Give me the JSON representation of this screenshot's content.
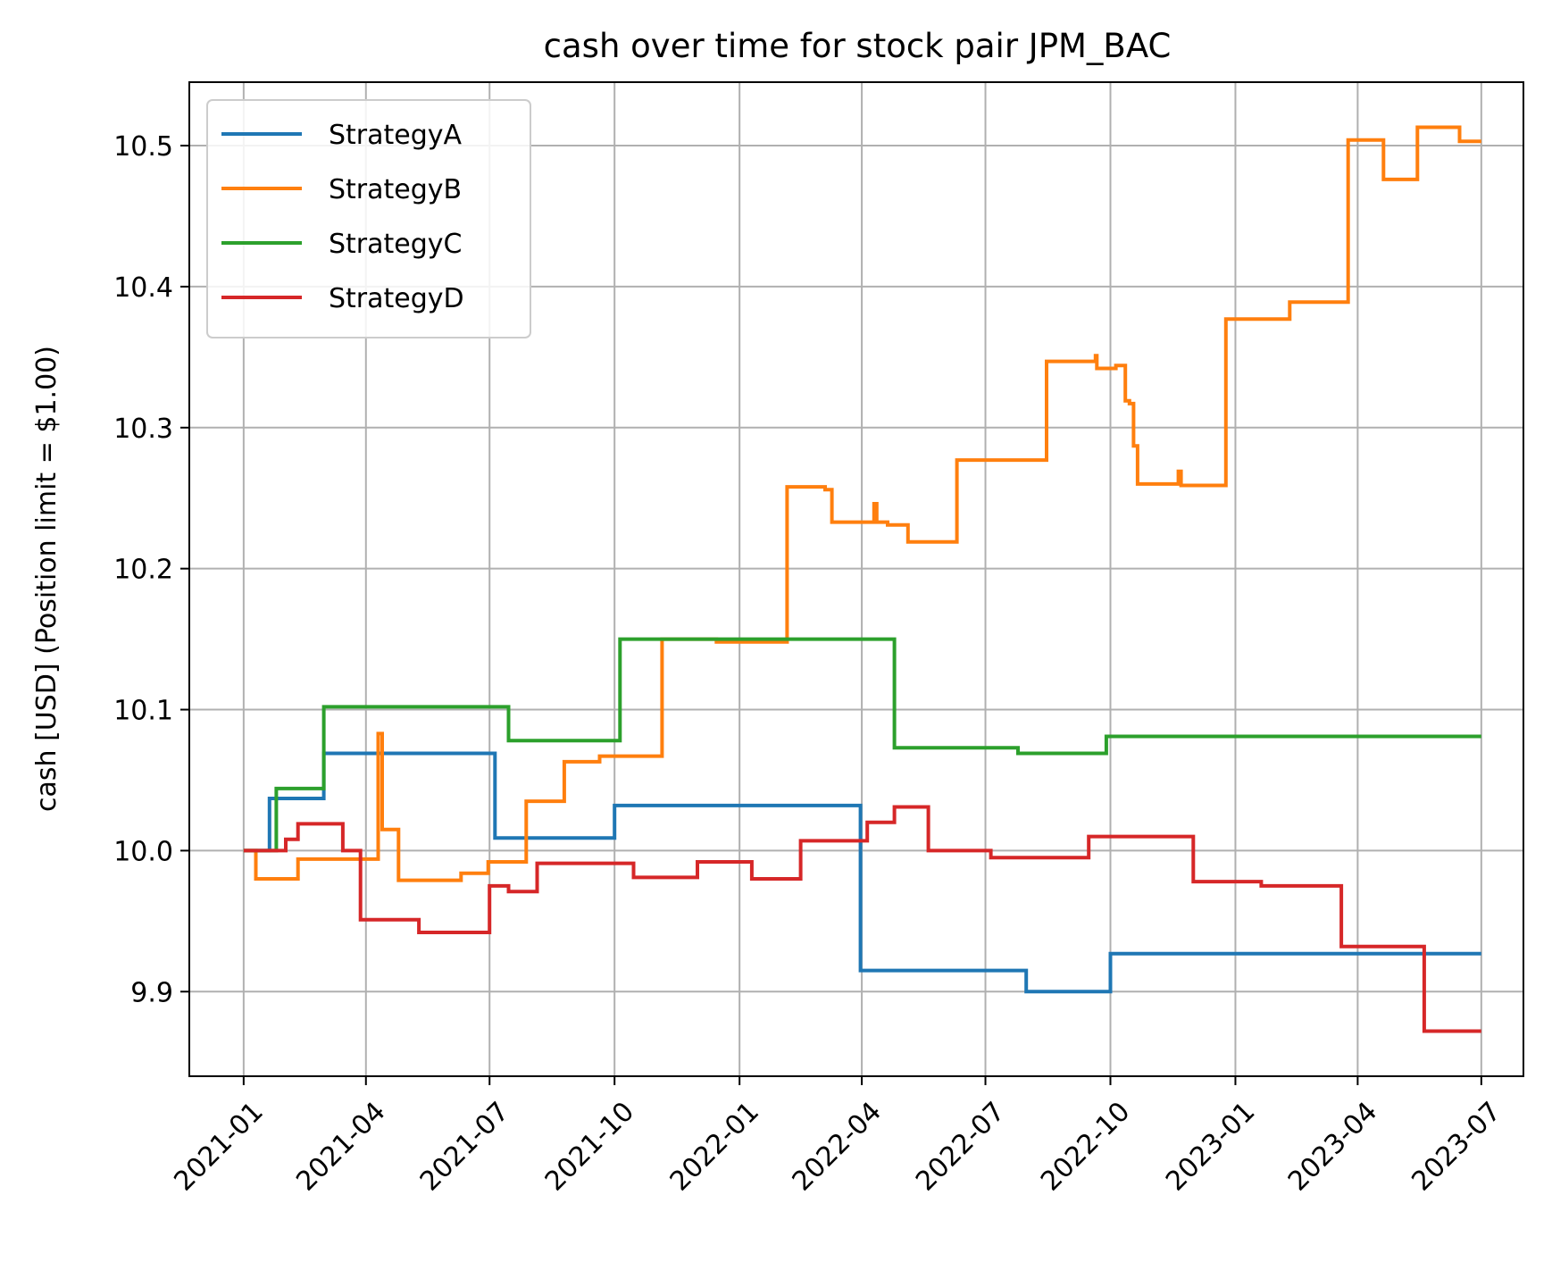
{
  "chart_data": {
    "type": "line",
    "title": "cash over time for stock pair JPM_BAC",
    "xlabel": "",
    "ylabel": "cash [USD] (Position limit = $1.00)",
    "x_ticks": [
      "2021-01",
      "2021-04",
      "2021-07",
      "2021-10",
      "2022-01",
      "2022-04",
      "2022-07",
      "2022-10",
      "2023-01",
      "2023-04",
      "2023-07"
    ],
    "y_ticks": [
      "9.9",
      "10.0",
      "10.1",
      "10.2",
      "10.3",
      "10.4",
      "10.5"
    ],
    "xlim": [
      "2020-11-22",
      "2023-08-01"
    ],
    "ylim": [
      9.84,
      10.545
    ],
    "grid": true,
    "legend_position": "upper-left",
    "step": true,
    "series": [
      {
        "name": "StrategyA",
        "color": "#1f77b4",
        "points": [
          [
            "2021-01-01",
            10.0
          ],
          [
            "2021-01-20",
            10.0
          ],
          [
            "2021-01-20",
            10.037
          ],
          [
            "2021-03-01",
            10.037
          ],
          [
            "2021-03-01",
            10.069
          ],
          [
            "2021-07-05",
            10.069
          ],
          [
            "2021-07-05",
            10.009
          ],
          [
            "2021-10-01",
            10.009
          ],
          [
            "2021-10-01",
            10.032
          ],
          [
            "2022-03-31",
            10.032
          ],
          [
            "2022-03-31",
            9.915
          ],
          [
            "2022-07-31",
            9.915
          ],
          [
            "2022-07-31",
            9.9
          ],
          [
            "2022-10-01",
            9.9
          ],
          [
            "2022-10-01",
            9.927
          ],
          [
            "2023-07-01",
            9.927
          ]
        ]
      },
      {
        "name": "StrategyB",
        "color": "#ff7f0e",
        "points": [
          [
            "2021-01-01",
            10.0
          ],
          [
            "2021-01-10",
            10.0
          ],
          [
            "2021-01-10",
            9.98
          ],
          [
            "2021-02-10",
            9.98
          ],
          [
            "2021-02-10",
            9.994
          ],
          [
            "2021-04-10",
            9.994
          ],
          [
            "2021-04-10",
            10.083
          ],
          [
            "2021-04-13",
            10.083
          ],
          [
            "2021-04-13",
            10.015
          ],
          [
            "2021-04-25",
            10.015
          ],
          [
            "2021-04-25",
            9.979
          ],
          [
            "2021-06-10",
            9.979
          ],
          [
            "2021-06-10",
            9.984
          ],
          [
            "2021-06-30",
            9.984
          ],
          [
            "2021-06-30",
            9.992
          ],
          [
            "2021-07-28",
            9.992
          ],
          [
            "2021-07-28",
            10.035
          ],
          [
            "2021-08-25",
            10.035
          ],
          [
            "2021-08-25",
            10.063
          ],
          [
            "2021-09-20",
            10.063
          ],
          [
            "2021-09-20",
            10.067
          ],
          [
            "2021-11-05",
            10.067
          ],
          [
            "2021-11-05",
            10.15
          ],
          [
            "2021-12-15",
            10.15
          ],
          [
            "2021-12-15",
            10.148
          ],
          [
            "2022-02-05",
            10.148
          ],
          [
            "2022-02-05",
            10.258
          ],
          [
            "2022-03-05",
            10.258
          ],
          [
            "2022-03-05",
            10.256
          ],
          [
            "2022-03-10",
            10.256
          ],
          [
            "2022-03-10",
            10.233
          ],
          [
            "2022-04-10",
            10.233
          ],
          [
            "2022-04-10",
            10.246
          ],
          [
            "2022-04-12",
            10.246
          ],
          [
            "2022-04-12",
            10.233
          ],
          [
            "2022-04-20",
            10.233
          ],
          [
            "2022-04-20",
            10.231
          ],
          [
            "2022-05-05",
            10.231
          ],
          [
            "2022-05-05",
            10.219
          ],
          [
            "2022-06-10",
            10.219
          ],
          [
            "2022-06-10",
            10.277
          ],
          [
            "2022-08-15",
            10.277
          ],
          [
            "2022-08-15",
            10.347
          ],
          [
            "2022-09-20",
            10.347
          ],
          [
            "2022-09-20",
            10.351
          ],
          [
            "2022-09-21",
            10.351
          ],
          [
            "2022-09-21",
            10.342
          ],
          [
            "2022-10-05",
            10.342
          ],
          [
            "2022-10-05",
            10.344
          ],
          [
            "2022-10-12",
            10.344
          ],
          [
            "2022-10-12",
            10.319
          ],
          [
            "2022-10-15",
            10.319
          ],
          [
            "2022-10-15",
            10.317
          ],
          [
            "2022-10-18",
            10.317
          ],
          [
            "2022-10-18",
            10.287
          ],
          [
            "2022-10-21",
            10.287
          ],
          [
            "2022-10-21",
            10.26
          ],
          [
            "2022-11-20",
            10.26
          ],
          [
            "2022-11-20",
            10.269
          ],
          [
            "2022-11-22",
            10.269
          ],
          [
            "2022-11-22",
            10.259
          ],
          [
            "2022-12-25",
            10.259
          ],
          [
            "2022-12-25",
            10.377
          ],
          [
            "2023-02-10",
            10.377
          ],
          [
            "2023-02-10",
            10.389
          ],
          [
            "2023-03-25",
            10.389
          ],
          [
            "2023-03-25",
            10.504
          ],
          [
            "2023-04-20",
            10.504
          ],
          [
            "2023-04-20",
            10.476
          ],
          [
            "2023-05-15",
            10.476
          ],
          [
            "2023-05-15",
            10.513
          ],
          [
            "2023-06-15",
            10.513
          ],
          [
            "2023-06-15",
            10.503
          ],
          [
            "2023-07-01",
            10.503
          ]
        ]
      },
      {
        "name": "StrategyC",
        "color": "#2ca02c",
        "points": [
          [
            "2021-01-01",
            10.0
          ],
          [
            "2021-01-25",
            10.0
          ],
          [
            "2021-01-25",
            10.044
          ],
          [
            "2021-03-01",
            10.044
          ],
          [
            "2021-03-01",
            10.102
          ],
          [
            "2021-07-15",
            10.102
          ],
          [
            "2021-07-15",
            10.078
          ],
          [
            "2021-10-05",
            10.078
          ],
          [
            "2021-10-05",
            10.15
          ],
          [
            "2022-04-25",
            10.15
          ],
          [
            "2022-04-25",
            10.073
          ],
          [
            "2022-07-25",
            10.073
          ],
          [
            "2022-07-25",
            10.069
          ],
          [
            "2022-09-28",
            10.069
          ],
          [
            "2022-09-28",
            10.081
          ],
          [
            "2023-07-01",
            10.081
          ]
        ]
      },
      {
        "name": "StrategyD",
        "color": "#d62728",
        "points": [
          [
            "2021-01-01",
            10.0
          ],
          [
            "2021-02-01",
            10.0
          ],
          [
            "2021-02-01",
            10.008
          ],
          [
            "2021-02-10",
            10.008
          ],
          [
            "2021-02-10",
            10.019
          ],
          [
            "2021-03-15",
            10.019
          ],
          [
            "2021-03-15",
            10.0
          ],
          [
            "2021-03-28",
            10.0
          ],
          [
            "2021-03-28",
            9.951
          ],
          [
            "2021-05-10",
            9.951
          ],
          [
            "2021-05-10",
            9.942
          ],
          [
            "2021-07-01",
            9.942
          ],
          [
            "2021-07-01",
            9.975
          ],
          [
            "2021-07-15",
            9.975
          ],
          [
            "2021-07-15",
            9.971
          ],
          [
            "2021-08-05",
            9.971
          ],
          [
            "2021-08-05",
            9.991
          ],
          [
            "2021-10-15",
            9.991
          ],
          [
            "2021-10-15",
            9.981
          ],
          [
            "2021-12-01",
            9.981
          ],
          [
            "2021-12-01",
            9.992
          ],
          [
            "2022-01-10",
            9.992
          ],
          [
            "2022-01-10",
            9.98
          ],
          [
            "2022-02-15",
            9.98
          ],
          [
            "2022-02-15",
            10.007
          ],
          [
            "2022-04-05",
            10.007
          ],
          [
            "2022-04-05",
            10.02
          ],
          [
            "2022-04-25",
            10.02
          ],
          [
            "2022-04-25",
            10.031
          ],
          [
            "2022-05-20",
            10.031
          ],
          [
            "2022-05-20",
            10.0
          ],
          [
            "2022-07-05",
            10.0
          ],
          [
            "2022-07-05",
            9.995
          ],
          [
            "2022-09-15",
            9.995
          ],
          [
            "2022-09-15",
            10.01
          ],
          [
            "2022-12-01",
            10.01
          ],
          [
            "2022-12-01",
            9.978
          ],
          [
            "2023-01-20",
            9.978
          ],
          [
            "2023-01-20",
            9.975
          ],
          [
            "2023-03-20",
            9.975
          ],
          [
            "2023-03-20",
            9.932
          ],
          [
            "2023-05-20",
            9.932
          ],
          [
            "2023-05-20",
            9.872
          ],
          [
            "2023-07-01",
            9.872
          ]
        ]
      }
    ]
  }
}
